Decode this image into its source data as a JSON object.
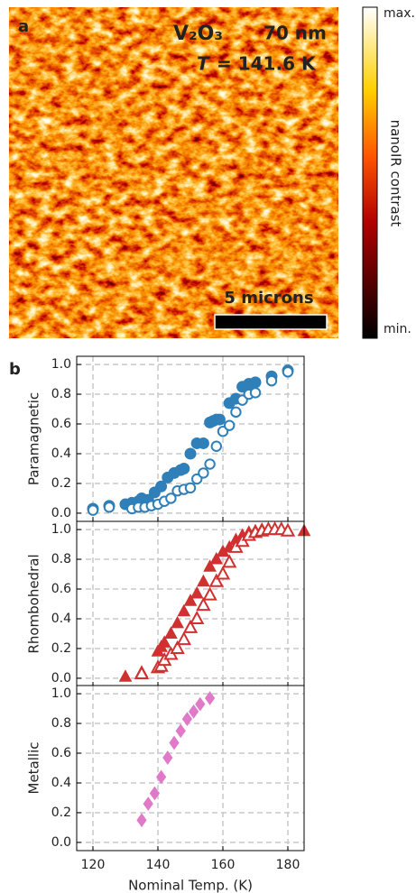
{
  "panel_a": {
    "label": "a",
    "formula": "V₂O₃",
    "thickness": "70 nm",
    "temperature_symbol": "T",
    "temperature_value": "= 141.6 K",
    "scale_bar": "5 microns",
    "colorbar": {
      "max": "max.",
      "min": "min.",
      "label": "nanoIR contrast"
    }
  },
  "panel_b": {
    "label": "b",
    "xlabel": "Nominal Temp. (K)"
  },
  "chart_data": [
    {
      "type": "scatter",
      "ylabel": "Paramagnetic",
      "xlim": [
        115,
        185
      ],
      "xticks": [
        120,
        140,
        160,
        180
      ],
      "ylim": [
        -0.055,
        1.055
      ],
      "yticks": [
        {
          "value": 0,
          "label": "0.0"
        },
        0.2,
        0.4,
        0.6,
        0.8,
        {
          "value": 1,
          "label": "1.0"
        }
      ],
      "grid": true,
      "series": [
        {
          "color": "#2f7fb8",
          "marker": "o",
          "filled": true,
          "x": [
            120,
            125,
            130,
            132,
            134,
            135,
            137,
            139,
            141,
            143,
            145,
            147,
            148,
            150,
            152,
            154,
            156,
            157,
            158,
            159,
            162,
            164,
            166,
            168,
            170,
            175,
            180
          ],
          "values": [
            0.03,
            0.05,
            0.06,
            0.07,
            0.08,
            0.1,
            0.09,
            0.14,
            0.18,
            0.24,
            0.27,
            0.29,
            0.3,
            0.4,
            0.47,
            0.47,
            0.61,
            0.62,
            0.63,
            0.63,
            0.74,
            0.77,
            0.85,
            0.87,
            0.88,
            0.92,
            0.96
          ]
        },
        {
          "color": "#2f7fb8",
          "marker": "o",
          "filled": false,
          "x": [
            120,
            125,
            132,
            134,
            136,
            138,
            140,
            142,
            144,
            146,
            148,
            150,
            152,
            154,
            156,
            158,
            160,
            162,
            164,
            166,
            168,
            170,
            175,
            180
          ],
          "values": [
            0.02,
            0.04,
            0.03,
            0.04,
            0.04,
            0.05,
            0.06,
            0.08,
            0.1,
            0.15,
            0.16,
            0.17,
            0.23,
            0.27,
            0.33,
            0.45,
            0.55,
            0.59,
            0.68,
            0.76,
            0.8,
            0.81,
            0.89,
            0.95
          ]
        }
      ]
    },
    {
      "type": "scatter",
      "ylabel": "Rhombohedral",
      "xlim": [
        115,
        185
      ],
      "xticks": [
        120,
        140,
        160,
        180
      ],
      "ylim": [
        -0.055,
        1.055
      ],
      "yticks": [
        {
          "value": 0,
          "label": "0.0"
        },
        0.2,
        0.4,
        0.6,
        0.8,
        {
          "value": 1,
          "label": "1.0"
        }
      ],
      "grid": true,
      "series": [
        {
          "color": "#d03030",
          "marker": "^",
          "filled": true,
          "x": [
            130,
            135,
            140,
            141,
            142,
            144,
            146,
            148,
            150,
            152,
            154,
            156,
            158,
            160,
            162,
            164,
            166,
            168,
            170,
            172,
            174,
            176,
            178,
            180,
            185
          ],
          "values": [
            0.01,
            0.04,
            0.18,
            0.21,
            0.24,
            0.3,
            0.37,
            0.45,
            0.52,
            0.57,
            0.65,
            0.75,
            0.8,
            0.85,
            0.88,
            0.93,
            0.96,
            0.98,
            0.99,
            1.0,
            1.0,
            1.0,
            1.0,
            0.99,
            0.99
          ]
        },
        {
          "color": "#d03030",
          "marker": "^",
          "filled": false,
          "x": [
            135,
            140,
            141,
            142,
            144,
            146,
            148,
            150,
            152,
            154,
            156,
            158,
            160,
            162,
            164,
            166,
            168,
            170,
            172,
            174,
            176,
            178,
            180
          ],
          "values": [
            0.03,
            0.07,
            0.08,
            0.12,
            0.16,
            0.2,
            0.26,
            0.34,
            0.4,
            0.49,
            0.56,
            0.65,
            0.7,
            0.78,
            0.88,
            0.92,
            0.96,
            0.98,
            0.99,
            1.0,
            1.0,
            1.0,
            0.99
          ]
        }
      ]
    },
    {
      "type": "scatter",
      "ylabel": "Metallic",
      "xlim": [
        115,
        185
      ],
      "xticks": [
        120,
        140,
        160,
        180
      ],
      "ylim": [
        -0.055,
        1.055
      ],
      "yticks": [
        {
          "value": 0,
          "label": "0.0"
        },
        0.2,
        0.4,
        0.6,
        0.8,
        {
          "value": 1,
          "label": "1.0"
        }
      ],
      "grid": true,
      "show_xtick_labels": true,
      "series": [
        {
          "color": "#e07ac8",
          "marker": "D",
          "filled": true,
          "x": [
            135,
            137,
            139,
            141,
            143,
            145,
            147,
            149,
            151,
            153,
            156
          ],
          "values": [
            0.15,
            0.26,
            0.33,
            0.44,
            0.57,
            0.67,
            0.75,
            0.83,
            0.88,
            0.93,
            0.97
          ]
        }
      ]
    }
  ]
}
